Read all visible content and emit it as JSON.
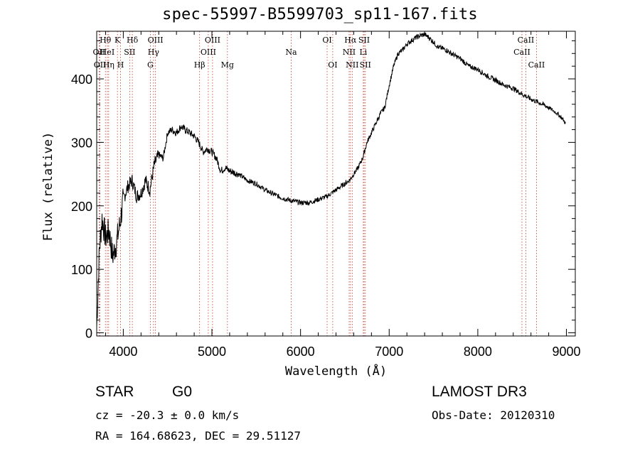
{
  "chart_data": {
    "type": "line",
    "title": "spec-55997-B5599703_sp11-167.fits",
    "xlabel": "Wavelength (Å)",
    "ylabel": "Flux (relative)",
    "xlim": [
      3700,
      9100
    ],
    "ylim": [
      -5,
      475
    ],
    "xticks": [
      4000,
      5000,
      6000,
      7000,
      8000,
      9000
    ],
    "yticks": [
      0,
      100,
      200,
      300,
      400
    ],
    "grid": false,
    "series": [
      {
        "name": "spectrum",
        "x": [
          3700,
          3730,
          3760,
          3800,
          3840,
          3880,
          3920,
          3960,
          4000,
          4050,
          4100,
          4150,
          4200,
          4250,
          4300,
          4350,
          4400,
          4450,
          4500,
          4550,
          4600,
          4650,
          4700,
          4750,
          4800,
          4850,
          4900,
          4950,
          5000,
          5050,
          5100,
          5150,
          5200,
          5300,
          5400,
          5500,
          5600,
          5700,
          5800,
          5900,
          6000,
          6100,
          6200,
          6300,
          6400,
          6500,
          6550,
          6600,
          6650,
          6700,
          6750,
          6800,
          6850,
          6900,
          6950,
          7000,
          7050,
          7100,
          7150,
          7200,
          7250,
          7300,
          7350,
          7400,
          7450,
          7500,
          7550,
          7600,
          7650,
          7700,
          7800,
          7900,
          8000,
          8100,
          8200,
          8300,
          8400,
          8500,
          8600,
          8700,
          8800,
          8900,
          8950,
          8990
        ],
        "y": [
          10,
          130,
          180,
          150,
          160,
          120,
          140,
          170,
          210,
          230,
          240,
          215,
          220,
          240,
          225,
          265,
          280,
          275,
          315,
          320,
          315,
          325,
          320,
          315,
          310,
          300,
          285,
          290,
          285,
          275,
          255,
          260,
          255,
          250,
          240,
          235,
          225,
          218,
          212,
          208,
          205,
          205,
          210,
          215,
          225,
          235,
          240,
          250,
          260,
          275,
          300,
          315,
          330,
          345,
          355,
          390,
          420,
          440,
          445,
          455,
          460,
          465,
          468,
          470,
          465,
          458,
          450,
          448,
          445,
          440,
          432,
          420,
          415,
          405,
          398,
          390,
          385,
          376,
          368,
          362,
          355,
          345,
          338,
          330
        ]
      }
    ],
    "lines": [
      {
        "label": "Hθ",
        "x": 3798,
        "row": 1
      },
      {
        "label": "OII",
        "x": 3727,
        "row": 2
      },
      {
        "label": "OII",
        "x": 3737,
        "row": 3
      },
      {
        "label": "HeI",
        "x": 3820,
        "row": 2
      },
      {
        "label": "Hη",
        "x": 3835,
        "row": 3
      },
      {
        "label": "K",
        "x": 3934,
        "row": 1
      },
      {
        "label": "H",
        "x": 3969,
        "row": 3
      },
      {
        "label": "Hδ",
        "x": 4102,
        "row": 1
      },
      {
        "label": "SII",
        "x": 4072,
        "row": 2
      },
      {
        "label": "OIII",
        "x": 4363,
        "row": 1
      },
      {
        "label": "Hγ",
        "x": 4341,
        "row": 2
      },
      {
        "label": "G",
        "x": 4305,
        "row": 3
      },
      {
        "label": "Hβ",
        "x": 4861,
        "row": 3
      },
      {
        "label": "OIII",
        "x": 5007,
        "row": 1
      },
      {
        "label": "OIII",
        "x": 4959,
        "row": 2
      },
      {
        "label": "Mg",
        "x": 5175,
        "row": 3
      },
      {
        "label": "Na",
        "x": 5894,
        "row": 2
      },
      {
        "label": "OI",
        "x": 6300,
        "row": 1
      },
      {
        "label": "OI",
        "x": 6363,
        "row": 3
      },
      {
        "label": "Hα",
        "x": 6563,
        "row": 1
      },
      {
        "label": "NII",
        "x": 6548,
        "row": 2
      },
      {
        "label": "NII",
        "x": 6583,
        "row": 3
      },
      {
        "label": "SII",
        "x": 6717,
        "row": 1
      },
      {
        "label": "Li",
        "x": 6708,
        "row": 2
      },
      {
        "label": "SII",
        "x": 6731,
        "row": 3
      },
      {
        "label": "CaII",
        "x": 8542,
        "row": 1
      },
      {
        "label": "CaII",
        "x": 8498,
        "row": 2
      },
      {
        "label": "CaII",
        "x": 8662,
        "row": 3
      }
    ]
  },
  "info": {
    "class": "STAR",
    "subclass": "G0",
    "survey": "LAMOST DR3",
    "cz": "cz = -20.3 ± 0.0 km/s",
    "obs_date": "Obs-Date: 20120310",
    "coords": "RA = 164.68623, DEC =  29.51127"
  }
}
